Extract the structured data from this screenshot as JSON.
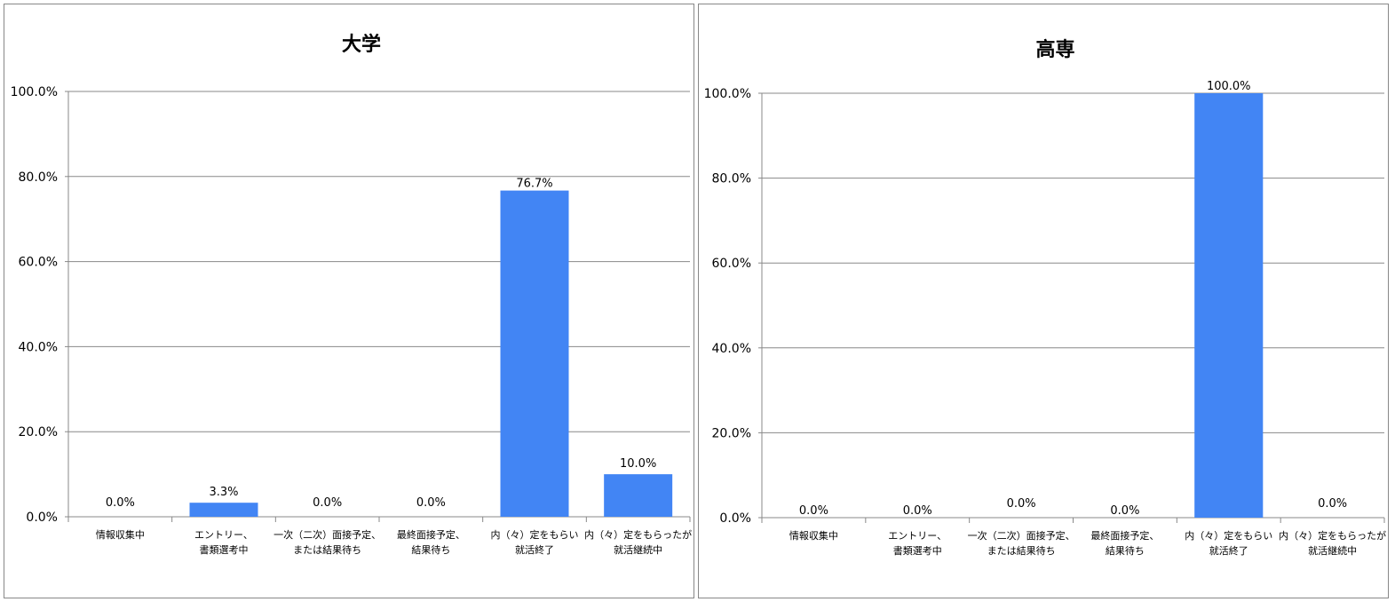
{
  "chart_data": [
    {
      "type": "bar",
      "title": "大学",
      "categories": [
        [
          "情報収集中"
        ],
        [
          "エントリー、",
          "書類選考中"
        ],
        [
          "一次（二次）面接予定、",
          "または結果待ち"
        ],
        [
          "最終面接予定、",
          "結果待ち"
        ],
        [
          "内（々）定をもらい",
          "就活終了"
        ],
        [
          "内（々）定をもらったが",
          "就活継続中"
        ]
      ],
      "values": [
        0.0,
        3.3,
        0.0,
        0.0,
        76.7,
        10.0
      ],
      "data_labels": [
        "0.0%",
        "3.3%",
        "0.0%",
        "0.0%",
        "76.7%",
        "10.0%"
      ],
      "ylim": [
        0,
        100
      ],
      "yticks": [
        "0.0%",
        "20.0%",
        "40.0%",
        "60.0%",
        "80.0%",
        "100.0%"
      ],
      "grid": true,
      "bar_color": "#4285F4"
    },
    {
      "type": "bar",
      "title": "高専",
      "categories": [
        [
          "情報収集中"
        ],
        [
          "エントリー、",
          "書類選考中"
        ],
        [
          "一次（二次）面接予定、",
          "または結果待ち"
        ],
        [
          "最終面接予定、",
          "結果待ち"
        ],
        [
          "内（々）定をもらい",
          "就活終了"
        ],
        [
          "内（々）定をもらったが",
          "就活継続中"
        ]
      ],
      "values": [
        0.0,
        0.0,
        0.0,
        0.0,
        100.0,
        0.0
      ],
      "data_labels": [
        "0.0%",
        "0.0%",
        "0.0%",
        "0.0%",
        "100.0%",
        "0.0%"
      ],
      "ylim": [
        0,
        100
      ],
      "yticks": [
        "0.0%",
        "20.0%",
        "40.0%",
        "60.0%",
        "80.0%",
        "100.0%"
      ],
      "grid": true,
      "bar_color": "#4285F4"
    }
  ]
}
